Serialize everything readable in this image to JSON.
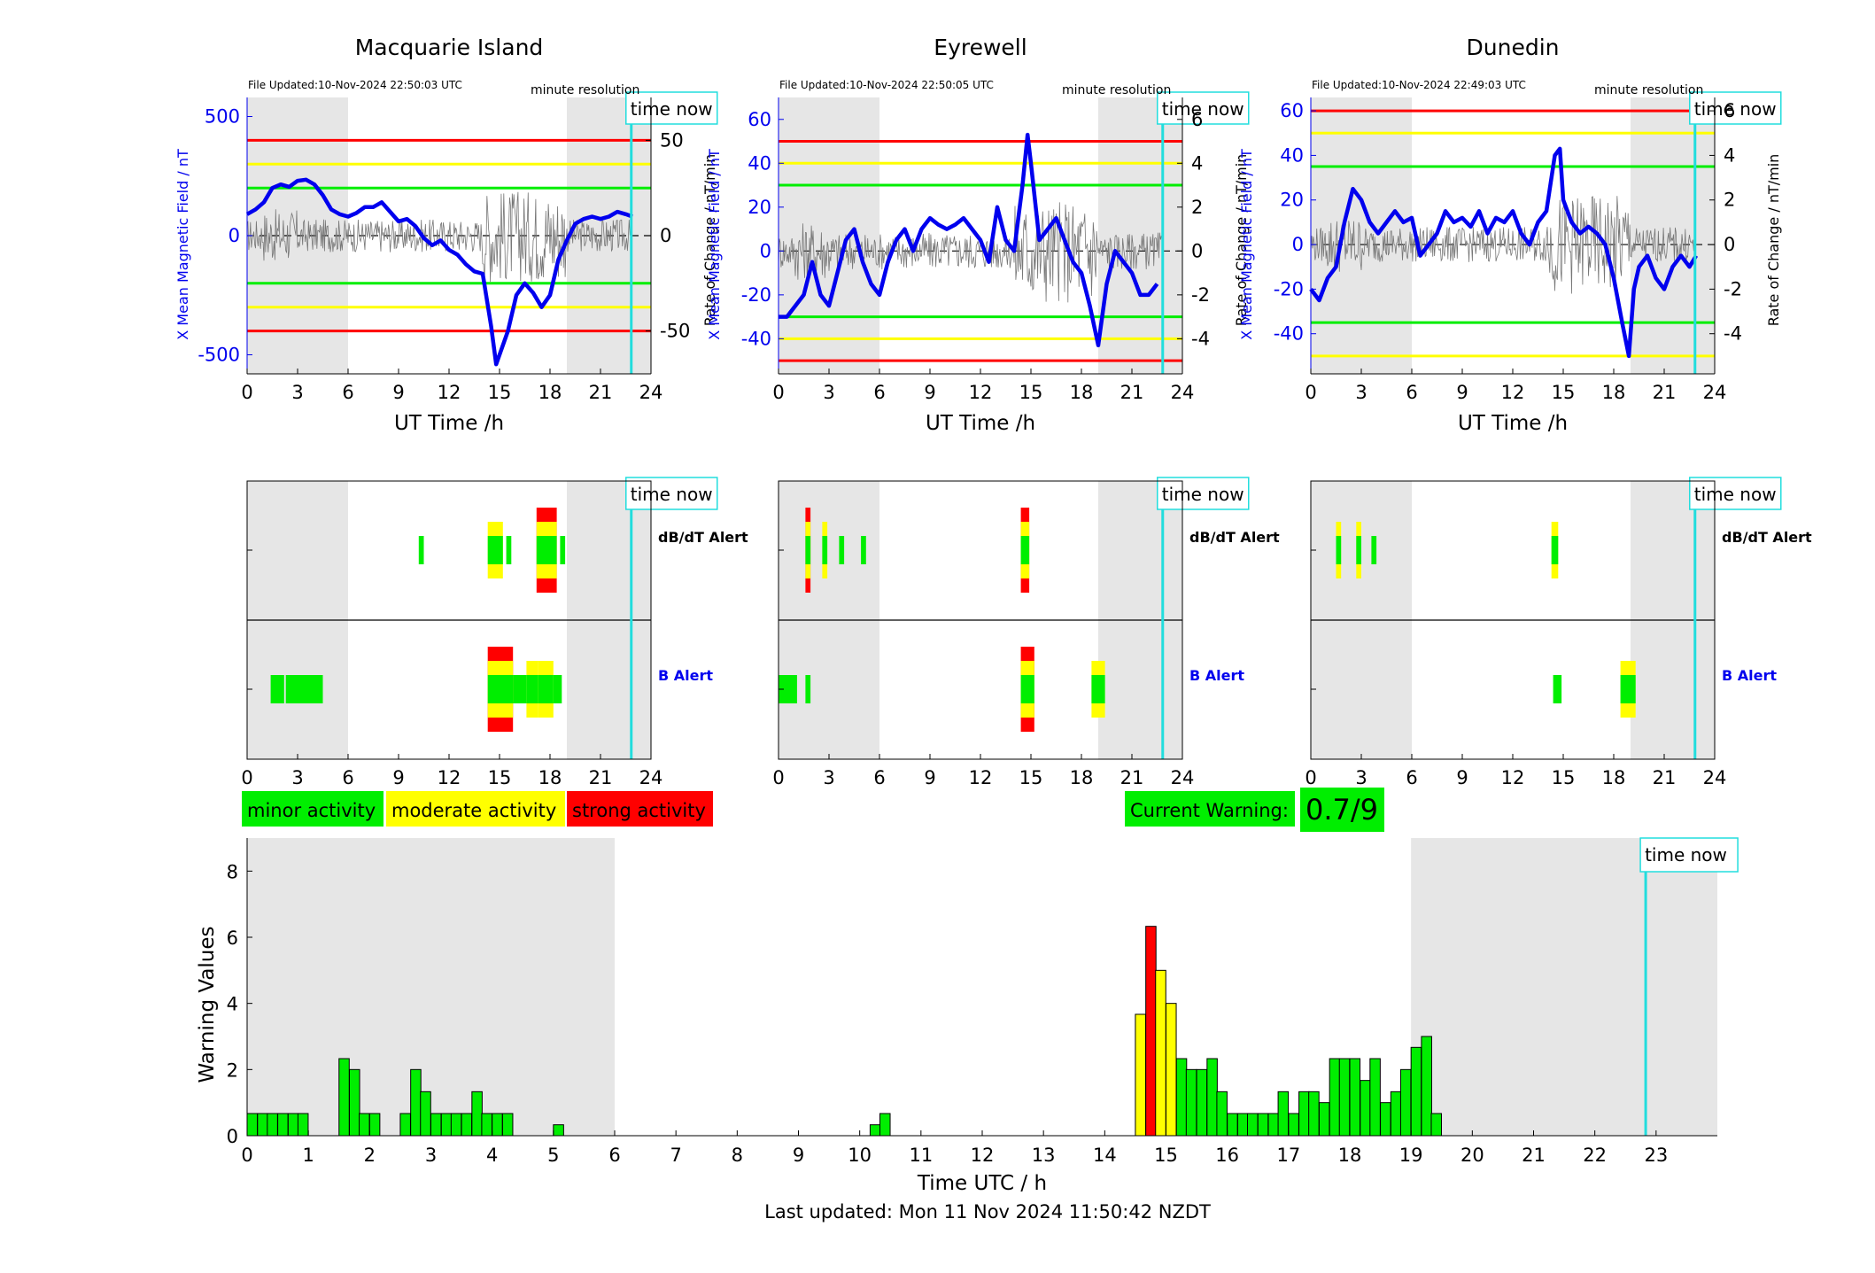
{
  "stations": [
    {
      "name": "Macquarie Island",
      "file_updated": "File Updated:10-Nov-2024 22:50:03 UTC",
      "resolution_label": "minute resolution",
      "left_ylabel": "X Mean Magnetic Field / nT",
      "right_ylabel": "Rate of Change / nT/min",
      "xlabel": "UT Time /h",
      "left_ylim": [
        -580,
        580
      ],
      "left_ticks": [
        -500,
        0,
        500
      ],
      "right_ylim": [
        -72.5,
        72.5
      ],
      "right_ticks": [
        -50,
        0,
        50
      ],
      "thresholds": {
        "red": 400,
        "yellow": 300,
        "green": 200
      },
      "field_trace": [
        [
          0,
          90
        ],
        [
          0.5,
          110
        ],
        [
          1,
          140
        ],
        [
          1.5,
          200
        ],
        [
          2,
          215
        ],
        [
          2.5,
          205
        ],
        [
          3,
          230
        ],
        [
          3.5,
          235
        ],
        [
          4,
          215
        ],
        [
          4.5,
          170
        ],
        [
          5,
          110
        ],
        [
          5.5,
          90
        ],
        [
          6,
          80
        ],
        [
          6.5,
          95
        ],
        [
          7,
          120
        ],
        [
          7.5,
          120
        ],
        [
          8,
          140
        ],
        [
          8.5,
          100
        ],
        [
          9,
          60
        ],
        [
          9.5,
          70
        ],
        [
          10,
          40
        ],
        [
          10.5,
          -10
        ],
        [
          11,
          -40
        ],
        [
          11.5,
          -20
        ],
        [
          12,
          -60
        ],
        [
          12.5,
          -80
        ],
        [
          13,
          -120
        ],
        [
          13.5,
          -150
        ],
        [
          14,
          -160
        ],
        [
          14.5,
          -380
        ],
        [
          14.8,
          -540
        ],
        [
          15,
          -500
        ],
        [
          15.5,
          -400
        ],
        [
          16,
          -250
        ],
        [
          16.5,
          -200
        ],
        [
          17,
          -240
        ],
        [
          17.5,
          -300
        ],
        [
          18,
          -250
        ],
        [
          18.5,
          -100
        ],
        [
          19,
          -20
        ],
        [
          19.5,
          50
        ],
        [
          20,
          70
        ],
        [
          20.5,
          80
        ],
        [
          21,
          70
        ],
        [
          21.5,
          80
        ],
        [
          22,
          100
        ],
        [
          22.5,
          90
        ],
        [
          22.9,
          80
        ]
      ],
      "db_alerts": [
        [
          10.2,
          10.5,
          "minor"
        ],
        [
          14.3,
          15.2,
          "moderate"
        ],
        [
          15.4,
          15.7,
          "minor"
        ],
        [
          17.2,
          18.4,
          "strong"
        ],
        [
          18.6,
          18.9,
          "minor"
        ]
      ],
      "b_alerts": [
        [
          1.4,
          2.2,
          "minor"
        ],
        [
          2.3,
          4.5,
          "minor"
        ],
        [
          14.3,
          15.8,
          "strong"
        ],
        [
          15.8,
          16.6,
          "minor"
        ],
        [
          16.6,
          17.3,
          "moderate"
        ],
        [
          17.3,
          18.2,
          "moderate"
        ],
        [
          18.2,
          18.7,
          "minor"
        ]
      ]
    },
    {
      "name": "Eyrewell",
      "file_updated": "File Updated:10-Nov-2024 22:50:05 UTC",
      "resolution_label": "minute resolution",
      "left_ylabel": "X Mean Magnetic Field / nT",
      "right_ylabel": "Rate of Change / nT/min",
      "xlabel": "UT Time /h",
      "left_ylim": [
        -56,
        70
      ],
      "left_ticks": [
        -40,
        -20,
        0,
        20,
        40,
        60
      ],
      "right_ylim": [
        -5.6,
        7.0
      ],
      "right_ticks": [
        -4,
        -2,
        0,
        2,
        4,
        6
      ],
      "thresholds": {
        "red": 50,
        "yellow": 40,
        "green": 30
      },
      "field_trace": [
        [
          0,
          -30
        ],
        [
          0.5,
          -30
        ],
        [
          1,
          -25
        ],
        [
          1.5,
          -20
        ],
        [
          2,
          -5
        ],
        [
          2.5,
          -20
        ],
        [
          3,
          -25
        ],
        [
          3.5,
          -10
        ],
        [
          4,
          5
        ],
        [
          4.5,
          10
        ],
        [
          5,
          -5
        ],
        [
          5.5,
          -15
        ],
        [
          6,
          -20
        ],
        [
          6.5,
          -5
        ],
        [
          7,
          5
        ],
        [
          7.5,
          10
        ],
        [
          8,
          0
        ],
        [
          8.5,
          10
        ],
        [
          9,
          15
        ],
        [
          9.5,
          12
        ],
        [
          10,
          10
        ],
        [
          10.5,
          12
        ],
        [
          11,
          15
        ],
        [
          11.5,
          10
        ],
        [
          12,
          5
        ],
        [
          12.5,
          -5
        ],
        [
          13,
          20
        ],
        [
          13.5,
          5
        ],
        [
          14,
          0
        ],
        [
          14.5,
          30
        ],
        [
          14.8,
          53
        ],
        [
          15,
          40
        ],
        [
          15.5,
          5
        ],
        [
          16,
          10
        ],
        [
          16.5,
          15
        ],
        [
          17,
          5
        ],
        [
          17.5,
          -5
        ],
        [
          18,
          -10
        ],
        [
          18.5,
          -25
        ],
        [
          19,
          -43
        ],
        [
          19.5,
          -15
        ],
        [
          20,
          0
        ],
        [
          20.5,
          -5
        ],
        [
          21,
          -10
        ],
        [
          21.5,
          -20
        ],
        [
          22,
          -20
        ],
        [
          22.5,
          -15
        ]
      ],
      "db_alerts": [
        [
          1.6,
          1.9,
          "strong"
        ],
        [
          2.6,
          2.9,
          "moderate"
        ],
        [
          3.6,
          3.9,
          "minor"
        ],
        [
          4.9,
          5.2,
          "minor"
        ],
        [
          14.4,
          14.9,
          "strong"
        ]
      ],
      "b_alerts": [
        [
          0,
          1.1,
          "minor"
        ],
        [
          1.6,
          1.9,
          "minor"
        ],
        [
          14.4,
          15.2,
          "strong"
        ],
        [
          18.6,
          19.4,
          "moderate"
        ]
      ]
    },
    {
      "name": "Dunedin",
      "file_updated": "File Updated:10-Nov-2024 22:49:03 UTC",
      "resolution_label": "minute resolution",
      "left_ylabel": "X Mean Magnetic Field / nT",
      "right_ylabel": "Rate of Change / nT/min",
      "xlabel": "UT Time /h",
      "left_ylim": [
        -58,
        66
      ],
      "left_ticks": [
        -40,
        -20,
        0,
        20,
        40,
        60
      ],
      "right_ylim": [
        -5.8,
        6.6
      ],
      "right_ticks": [
        -4,
        -2,
        0,
        2,
        4,
        6
      ],
      "thresholds": {
        "red": 60,
        "yellow": 50,
        "green": 35
      },
      "field_trace": [
        [
          0,
          -20
        ],
        [
          0.5,
          -25
        ],
        [
          1,
          -15
        ],
        [
          1.5,
          -10
        ],
        [
          2,
          10
        ],
        [
          2.5,
          25
        ],
        [
          3,
          20
        ],
        [
          3.5,
          10
        ],
        [
          4,
          5
        ],
        [
          4.5,
          10
        ],
        [
          5,
          15
        ],
        [
          5.5,
          10
        ],
        [
          6,
          12
        ],
        [
          6.5,
          -5
        ],
        [
          7,
          0
        ],
        [
          7.5,
          5
        ],
        [
          8,
          15
        ],
        [
          8.5,
          10
        ],
        [
          9,
          12
        ],
        [
          9.5,
          8
        ],
        [
          10,
          15
        ],
        [
          10.5,
          5
        ],
        [
          11,
          12
        ],
        [
          11.5,
          10
        ],
        [
          12,
          15
        ],
        [
          12.5,
          5
        ],
        [
          13,
          0
        ],
        [
          13.5,
          10
        ],
        [
          14,
          15
        ],
        [
          14.5,
          40
        ],
        [
          14.8,
          43
        ],
        [
          15,
          20
        ],
        [
          15.5,
          10
        ],
        [
          16,
          5
        ],
        [
          16.5,
          8
        ],
        [
          17,
          5
        ],
        [
          17.5,
          0
        ],
        [
          18,
          -15
        ],
        [
          18.5,
          -35
        ],
        [
          18.9,
          -50
        ],
        [
          19.2,
          -20
        ],
        [
          19.5,
          -10
        ],
        [
          20,
          -5
        ],
        [
          20.5,
          -15
        ],
        [
          21,
          -20
        ],
        [
          21.5,
          -10
        ],
        [
          22,
          -5
        ],
        [
          22.5,
          -10
        ],
        [
          22.9,
          -5
        ]
      ],
      "db_alerts": [
        [
          1.5,
          1.8,
          "moderate"
        ],
        [
          2.7,
          3.0,
          "moderate"
        ],
        [
          3.6,
          3.9,
          "minor"
        ],
        [
          14.3,
          14.7,
          "moderate"
        ]
      ],
      "b_alerts": [
        [
          14.4,
          14.9,
          "minor"
        ],
        [
          18.4,
          19.3,
          "moderate"
        ]
      ]
    }
  ],
  "shared": {
    "x_ticks": [
      0,
      3,
      6,
      9,
      12,
      15,
      18,
      21,
      24
    ],
    "night_shade": [
      [
        0,
        6
      ],
      [
        19,
        24
      ]
    ],
    "time_now_hours": 22.83,
    "time_now_label": "time now",
    "db_alert_label": "dB/dT Alert",
    "b_alert_label": "B Alert"
  },
  "legend": {
    "minor": "minor activity",
    "moderate": "moderate activity",
    "strong": "strong activity"
  },
  "current_warning": {
    "label": "Current Warning:",
    "value": "0.7/9"
  },
  "colors": {
    "minor": "#00ee00",
    "moderate": "#ffff00",
    "strong": "#ff0000",
    "trace": "#0000ee",
    "time_now": "#22dddd",
    "shade": "#e6e6e6"
  },
  "chart_data": {
    "type": "bar",
    "xlabel": "Time UTC / h",
    "ylabel": "Warning Values",
    "xlim": [
      0,
      24
    ],
    "ylim": [
      0,
      9
    ],
    "x_ticks": [
      0,
      1,
      2,
      3,
      4,
      5,
      6,
      7,
      8,
      9,
      10,
      11,
      12,
      13,
      14,
      15,
      16,
      17,
      18,
      19,
      20,
      21,
      22,
      23
    ],
    "y_ticks": [
      0,
      2,
      4,
      6,
      8
    ],
    "bar_width_h": 0.1667,
    "bars": [
      [
        0.0,
        0.67,
        "minor"
      ],
      [
        0.17,
        0.67,
        "minor"
      ],
      [
        0.33,
        0.67,
        "minor"
      ],
      [
        0.5,
        0.67,
        "minor"
      ],
      [
        0.67,
        0.67,
        "minor"
      ],
      [
        0.83,
        0.67,
        "minor"
      ],
      [
        1.5,
        2.33,
        "minor"
      ],
      [
        1.67,
        2.0,
        "minor"
      ],
      [
        1.83,
        0.67,
        "minor"
      ],
      [
        2.0,
        0.67,
        "minor"
      ],
      [
        2.5,
        0.67,
        "minor"
      ],
      [
        2.67,
        2.0,
        "minor"
      ],
      [
        2.83,
        1.33,
        "minor"
      ],
      [
        3.0,
        0.67,
        "minor"
      ],
      [
        3.17,
        0.67,
        "minor"
      ],
      [
        3.33,
        0.67,
        "minor"
      ],
      [
        3.5,
        0.67,
        "minor"
      ],
      [
        3.67,
        1.33,
        "minor"
      ],
      [
        3.83,
        0.67,
        "minor"
      ],
      [
        4.0,
        0.67,
        "minor"
      ],
      [
        4.17,
        0.67,
        "minor"
      ],
      [
        5.0,
        0.33,
        "minor"
      ],
      [
        10.17,
        0.33,
        "minor"
      ],
      [
        10.33,
        0.67,
        "minor"
      ],
      [
        14.5,
        3.67,
        "moderate"
      ],
      [
        14.67,
        6.33,
        "strong"
      ],
      [
        14.83,
        5.0,
        "moderate"
      ],
      [
        15.0,
        4.0,
        "moderate"
      ],
      [
        15.17,
        2.33,
        "minor"
      ],
      [
        15.33,
        2.0,
        "minor"
      ],
      [
        15.5,
        2.0,
        "minor"
      ],
      [
        15.67,
        2.33,
        "minor"
      ],
      [
        15.83,
        1.33,
        "minor"
      ],
      [
        16.0,
        0.67,
        "minor"
      ],
      [
        16.17,
        0.67,
        "minor"
      ],
      [
        16.33,
        0.67,
        "minor"
      ],
      [
        16.5,
        0.67,
        "minor"
      ],
      [
        16.67,
        0.67,
        "minor"
      ],
      [
        16.83,
        1.33,
        "minor"
      ],
      [
        17.0,
        0.67,
        "minor"
      ],
      [
        17.17,
        1.33,
        "minor"
      ],
      [
        17.33,
        1.33,
        "minor"
      ],
      [
        17.5,
        1.0,
        "minor"
      ],
      [
        17.67,
        2.33,
        "minor"
      ],
      [
        17.83,
        2.33,
        "minor"
      ],
      [
        18.0,
        2.33,
        "minor"
      ],
      [
        18.17,
        1.67,
        "minor"
      ],
      [
        18.33,
        2.33,
        "minor"
      ],
      [
        18.5,
        1.0,
        "minor"
      ],
      [
        18.67,
        1.33,
        "minor"
      ],
      [
        18.83,
        2.0,
        "minor"
      ],
      [
        19.0,
        2.67,
        "minor"
      ],
      [
        19.17,
        3.0,
        "minor"
      ],
      [
        19.33,
        0.67,
        "minor"
      ]
    ],
    "night_shade": [
      [
        0,
        6
      ],
      [
        19,
        24
      ]
    ],
    "time_now_hours": 22.83,
    "time_now_label": "time now"
  },
  "footer": "Last updated: Mon 11 Nov 2024 11:50:42 NZDT"
}
